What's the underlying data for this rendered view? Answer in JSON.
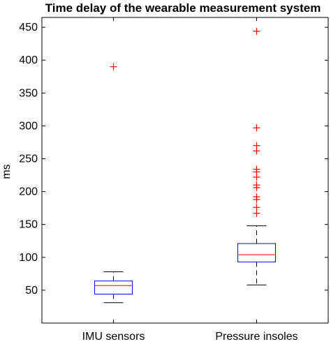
{
  "chart_data": {
    "type": "boxplot",
    "title": "Time delay of the wearable measurement system",
    "ylabel": "ms",
    "xlabel": "",
    "ylim": [
      0,
      465
    ],
    "yticks": [
      50,
      100,
      150,
      200,
      250,
      300,
      350,
      400,
      450
    ],
    "grid": false,
    "categories": [
      "IMU sensors",
      "Pressure insoles"
    ],
    "boxes": [
      {
        "category": "IMU sensors",
        "whisker_low": 31,
        "q1": 44,
        "median": 57,
        "q3": 64,
        "whisker_high": 78,
        "outliers": [
          390
        ]
      },
      {
        "category": "Pressure insoles",
        "whisker_low": 58,
        "q1": 93,
        "median": 104,
        "q3": 121,
        "whisker_high": 148,
        "outliers": [
          444,
          297,
          270,
          262,
          234,
          230,
          222,
          210,
          206,
          192,
          188,
          176,
          167
        ]
      }
    ],
    "colors": {
      "box": "#0000ff",
      "median": "#ff0000",
      "whisker": "#000000",
      "outlier": "#ff0000",
      "axis": "#000000"
    }
  }
}
